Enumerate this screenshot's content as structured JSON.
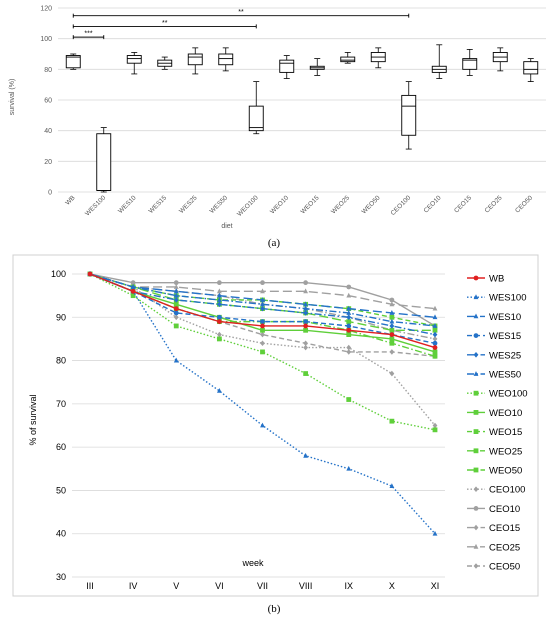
{
  "chart_data": [
    {
      "type": "box",
      "ylabel": "survival (%)",
      "xlabel": "diet",
      "ylim": [
        0,
        120
      ],
      "yticks": [
        0,
        20,
        40,
        60,
        80,
        100,
        120
      ],
      "grid": true,
      "categories": [
        "WB",
        "WES100",
        "WES10",
        "WES15",
        "WES25",
        "WES50",
        "WEO100",
        "WEO10",
        "WEO15",
        "WEO25",
        "WEO50",
        "CEO100",
        "CEO10",
        "CEO15",
        "CEO25",
        "CEO50"
      ],
      "boxes": [
        {
          "min": 80,
          "q1": 81,
          "median": 88,
          "q3": 89,
          "max": 90
        },
        {
          "min": 0,
          "q1": 1,
          "median": 1,
          "q3": 38,
          "max": 42
        },
        {
          "min": 77,
          "q1": 84,
          "median": 87,
          "q3": 89,
          "max": 91
        },
        {
          "min": 80,
          "q1": 82,
          "median": 84,
          "q3": 86,
          "max": 88
        },
        {
          "min": 77,
          "q1": 83,
          "median": 88,
          "q3": 90,
          "max": 94
        },
        {
          "min": 79,
          "q1": 83,
          "median": 87,
          "q3": 90,
          "max": 94
        },
        {
          "min": 38,
          "q1": 40,
          "median": 42,
          "q3": 56,
          "max": 72
        },
        {
          "min": 74,
          "q1": 78,
          "median": 84,
          "q3": 86,
          "max": 89
        },
        {
          "min": 76,
          "q1": 80,
          "median": 81,
          "q3": 82,
          "max": 87
        },
        {
          "min": 84,
          "q1": 85,
          "median": 86,
          "q3": 88,
          "max": 91
        },
        {
          "min": 81,
          "q1": 85,
          "median": 88,
          "q3": 91,
          "max": 94
        },
        {
          "min": 28,
          "q1": 37,
          "median": 56,
          "q3": 63,
          "max": 72
        },
        {
          "min": 74,
          "q1": 78,
          "median": 80,
          "q3": 82,
          "max": 96
        },
        {
          "min": 76,
          "q1": 80,
          "median": 86,
          "q3": 87,
          "max": 93
        },
        {
          "min": 79,
          "q1": 85,
          "median": 88,
          "q3": 91,
          "max": 94
        },
        {
          "min": 72,
          "q1": 77,
          "median": 80,
          "q3": 85,
          "max": 87
        }
      ],
      "significance": [
        {
          "from": "WB",
          "to": "WES100",
          "label": "***",
          "y": 101
        },
        {
          "from": "WB",
          "to": "WEO100",
          "label": "**",
          "y": 108
        },
        {
          "from": "WB",
          "to": "CEO100",
          "label": "**",
          "y": 115
        }
      ],
      "caption": "(a)"
    },
    {
      "type": "line",
      "ylabel": "% of survival",
      "xlabel": "week",
      "ylim": [
        30,
        100
      ],
      "yticks": [
        30,
        40,
        50,
        60,
        70,
        80,
        90,
        100
      ],
      "grid": true,
      "legend": "right",
      "categories": [
        "III",
        "IV",
        "V",
        "VI",
        "VII",
        "VIII",
        "IX",
        "X",
        "XI"
      ],
      "series": [
        {
          "name": "WB",
          "color": "#e02020",
          "dash": "solid",
          "marker": "circle",
          "values": [
            100,
            96,
            92,
            89,
            88,
            88,
            87,
            86,
            83
          ]
        },
        {
          "name": "WES100",
          "color": "#2472c8",
          "dash": "dot",
          "marker": "triangle",
          "values": [
            100,
            96,
            80,
            73,
            65,
            58,
            55,
            51,
            40
          ]
        },
        {
          "name": "WES10",
          "color": "#2472c8",
          "dash": "longdash",
          "marker": "triangle",
          "values": [
            100,
            97,
            96,
            95,
            94,
            93,
            92,
            91,
            90
          ]
        },
        {
          "name": "WES15",
          "color": "#2472c8",
          "dash": "dash",
          "marker": "circle",
          "values": [
            100,
            96,
            91,
            90,
            89,
            89,
            88,
            86,
            84
          ]
        },
        {
          "name": "WES25",
          "color": "#2472c8",
          "dash": "dashdot",
          "marker": "diamond",
          "values": [
            100,
            96,
            94,
            93,
            92,
            91,
            90,
            88,
            86
          ]
        },
        {
          "name": "WES50",
          "color": "#2472c8",
          "dash": "dashdot",
          "marker": "triangle",
          "values": [
            100,
            97,
            95,
            94,
            93,
            92,
            91,
            89,
            88
          ]
        },
        {
          "name": "WEO100",
          "color": "#5fcf3a",
          "dash": "dot",
          "marker": "square",
          "values": [
            100,
            95,
            88,
            85,
            82,
            77,
            71,
            66,
            64
          ]
        },
        {
          "name": "WEO10",
          "color": "#5fcf3a",
          "dash": "solid",
          "marker": "square",
          "values": [
            100,
            96,
            93,
            90,
            87,
            87,
            86,
            85,
            82
          ]
        },
        {
          "name": "WEO15",
          "color": "#5fcf3a",
          "dash": "dash",
          "marker": "square",
          "values": [
            100,
            97,
            95,
            94,
            94,
            93,
            92,
            90,
            88
          ]
        },
        {
          "name": "WEO25",
          "color": "#5fcf3a",
          "dash": "longdash",
          "marker": "square",
          "values": [
            100,
            97,
            94,
            93,
            92,
            91,
            89,
            87,
            87
          ]
        },
        {
          "name": "WEO50",
          "color": "#5fcf3a",
          "dash": "dashdot",
          "marker": "square",
          "values": [
            100,
            96,
            92,
            89,
            89,
            89,
            87,
            84,
            81
          ]
        },
        {
          "name": "CEO100",
          "color": "#a0a0a0",
          "dash": "dot",
          "marker": "diamond",
          "values": [
            100,
            97,
            90,
            86,
            84,
            83,
            83,
            77,
            65
          ]
        },
        {
          "name": "CEO10",
          "color": "#a0a0a0",
          "dash": "solid",
          "marker": "circle",
          "values": [
            100,
            98,
            98,
            98,
            98,
            98,
            97,
            94,
            88
          ]
        },
        {
          "name": "CEO15",
          "color": "#a0a0a0",
          "dash": "dashdot",
          "marker": "diamond",
          "values": [
            100,
            97,
            96,
            95,
            93,
            92,
            90,
            87,
            85
          ]
        },
        {
          "name": "CEO25",
          "color": "#a0a0a0",
          "dash": "longdash",
          "marker": "triangle",
          "values": [
            100,
            97,
            97,
            96,
            96,
            96,
            95,
            93,
            92
          ]
        },
        {
          "name": "CEO50",
          "color": "#a0a0a0",
          "dash": "dash",
          "marker": "diamond",
          "values": [
            100,
            96,
            92,
            89,
            86,
            84,
            82,
            82,
            81
          ]
        }
      ],
      "caption": "(b)"
    }
  ]
}
